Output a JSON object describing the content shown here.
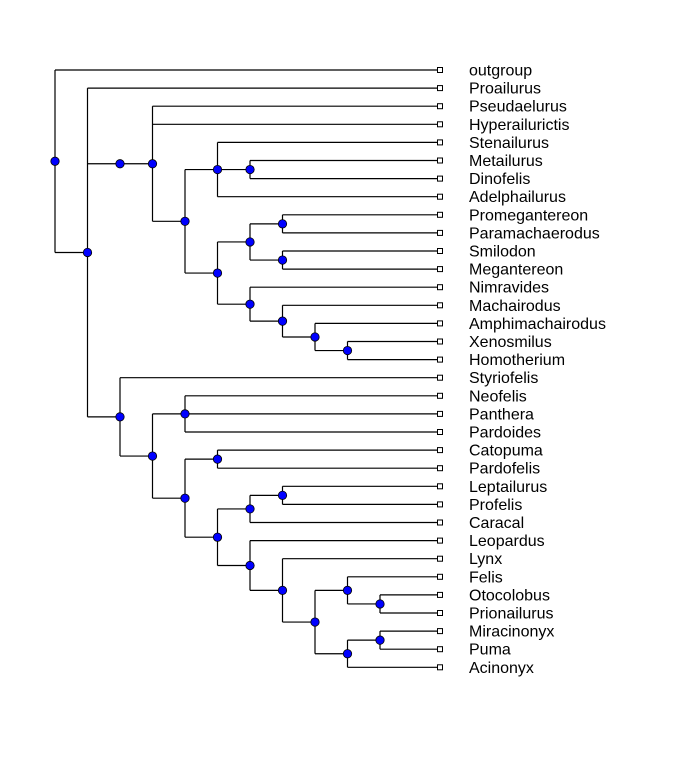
{
  "tree": {
    "tips": [
      "outgroup",
      "Proailurus",
      "Pseudaelurus",
      "Hyperailurictis",
      "Stenailurus",
      "Metailurus",
      "Dinofelis",
      "Adelphailurus",
      "Promegantereon",
      "Paramachaerodus",
      "Smilodon",
      "Megantereon",
      "Nimravides",
      "Machairodus",
      "Amphimachairodus",
      "Xenosmilus",
      "Homotherium",
      "Styriofelis",
      "Neofelis",
      "Panthera",
      "Pardoides",
      "Catopuma",
      "Pardofelis",
      "Leptailurus",
      "Profelis",
      "Caracal",
      "Leopardus",
      "Lynx",
      "Felis",
      "Otocolobus",
      "Prionailurus",
      "Miracinonyx",
      "Puma",
      "Acinonyx"
    ],
    "newick": "(outgroup,(Proailurus,((Pseudaelurus,Hyperailurictis,((Stenailurus,(Metailurus,Dinofelis),Adelphailurus),(((Promegantereon,Paramachaerodus),(Smilodon,Megantereon)),(Nimravides,(Machairodus,(Amphimachairodus,(Xenosmilus,Homotherium)))))))),(Styriofelis,((Neofelis,Panthera,Pardoides),((Catopuma,Pardofelis),(((Leptailurus,Profelis),Caracal),(Leopardus,(Lynx,((Felis,(Otocolobus,Prionailurus)),((Miracinonyx,Puma),Acinonyx)))))))))));",
    "branch_color": "#000000",
    "node_color": "#0000ff",
    "node_stroke": "#000000",
    "tip_marker_color": "#ffffff"
  }
}
